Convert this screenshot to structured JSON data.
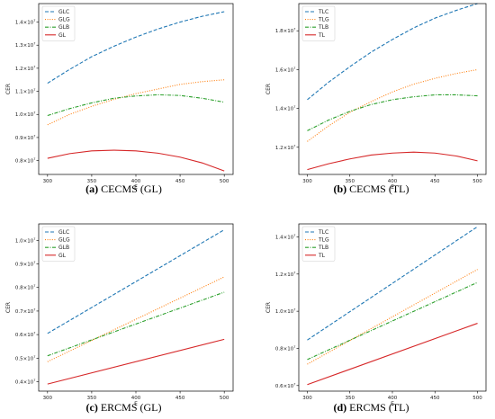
{
  "colors": {
    "C": "#1f77b4",
    "G": "#ff7f0e",
    "B": "#2ca02c",
    "L": "#d62728"
  },
  "captions": [
    {
      "letter": "(a)",
      "text": "CECMS (GL)"
    },
    {
      "letter": "(b)",
      "text": "CECMS (TL)"
    },
    {
      "letter": "(c)",
      "text": "ERCMS (GL)"
    },
    {
      "letter": "(d)",
      "text": "ERCMS (TL)"
    }
  ],
  "chart_data": [
    {
      "type": "line",
      "xlabel": "E",
      "ylabel": "CER",
      "x": [
        300,
        325,
        350,
        375,
        400,
        425,
        450,
        475,
        500
      ],
      "xticks": [
        300,
        350,
        400,
        450,
        500
      ],
      "xlim": [
        290,
        510
      ],
      "ylim": [
        7400000,
        14800000
      ],
      "yticks": [
        {
          "value": 8000000,
          "mant": "0.8×10",
          "exp": "7"
        },
        {
          "value": 9000000,
          "mant": "0.9×10",
          "exp": "7"
        },
        {
          "value": 10000000,
          "mant": "1.0×10",
          "exp": "7"
        },
        {
          "value": 11000000,
          "mant": "1.1×10",
          "exp": "7"
        },
        {
          "value": 12000000,
          "mant": "1.2×10",
          "exp": "7"
        },
        {
          "value": 13000000,
          "mant": "1.3×10",
          "exp": "7"
        },
        {
          "value": 14000000,
          "mant": "1.4×10",
          "exp": "7"
        }
      ],
      "legend": "top-left",
      "series": [
        {
          "name": "GLC",
          "style": "dashed",
          "color": "C",
          "values": [
            11350000,
            11950000,
            12500000,
            12950000,
            13350000,
            13700000,
            14000000,
            14250000,
            14450000
          ]
        },
        {
          "name": "GLG",
          "style": "dotted",
          "color": "G",
          "values": [
            9550000,
            10000000,
            10350000,
            10650000,
            10900000,
            11100000,
            11300000,
            11420000,
            11500000
          ]
        },
        {
          "name": "GLB",
          "style": "dashdot",
          "color": "B",
          "values": [
            9950000,
            10250000,
            10500000,
            10700000,
            10800000,
            10850000,
            10820000,
            10700000,
            10530000
          ]
        },
        {
          "name": "GL",
          "style": "solid",
          "color": "L",
          "values": [
            8100000,
            8300000,
            8420000,
            8450000,
            8420000,
            8320000,
            8150000,
            7900000,
            7550000
          ]
        }
      ]
    },
    {
      "type": "line",
      "xlabel": "E",
      "ylabel": "CER",
      "x": [
        300,
        325,
        350,
        375,
        400,
        425,
        450,
        475,
        500
      ],
      "xticks": [
        300,
        350,
        400,
        450,
        500
      ],
      "xlim": [
        290,
        510
      ],
      "ylim": [
        10600000,
        19400000
      ],
      "yticks": [
        {
          "value": 12000000,
          "mant": "1.2×10",
          "exp": "7"
        },
        {
          "value": 14000000,
          "mant": "1.4×10",
          "exp": "7"
        },
        {
          "value": 16000000,
          "mant": "1.6×10",
          "exp": "7"
        },
        {
          "value": 18000000,
          "mant": "1.8×10",
          "exp": "7"
        }
      ],
      "legend": "top-left",
      "series": [
        {
          "name": "TLC",
          "style": "dashed",
          "color": "C",
          "values": [
            14450000,
            15350000,
            16150000,
            16900000,
            17550000,
            18150000,
            18650000,
            19050000,
            19400000
          ]
        },
        {
          "name": "TLG",
          "style": "dotted",
          "color": "G",
          "values": [
            12300000,
            13100000,
            13800000,
            14350000,
            14850000,
            15250000,
            15550000,
            15800000,
            16000000
          ]
        },
        {
          "name": "TLB",
          "style": "dashdot",
          "color": "B",
          "values": [
            12850000,
            13400000,
            13850000,
            14200000,
            14450000,
            14600000,
            14700000,
            14700000,
            14650000
          ]
        },
        {
          "name": "TL",
          "style": "solid",
          "color": "L",
          "values": [
            10850000,
            11150000,
            11400000,
            11600000,
            11700000,
            11750000,
            11700000,
            11550000,
            11300000
          ]
        }
      ]
    },
    {
      "type": "line",
      "xlabel": "E",
      "ylabel": "CER",
      "x": [
        300,
        500
      ],
      "xticks": [
        300,
        350,
        400,
        450,
        500
      ],
      "xlim": [
        290,
        510
      ],
      "ylim": [
        3600000,
        10700000
      ],
      "yticks": [
        {
          "value": 4000000,
          "mant": "0.4×10",
          "exp": "7"
        },
        {
          "value": 5000000,
          "mant": "0.5×10",
          "exp": "7"
        },
        {
          "value": 6000000,
          "mant": "0.6×10",
          "exp": "7"
        },
        {
          "value": 7000000,
          "mant": "0.7×10",
          "exp": "7"
        },
        {
          "value": 8000000,
          "mant": "0.8×10",
          "exp": "7"
        },
        {
          "value": 9000000,
          "mant": "0.9×10",
          "exp": "7"
        },
        {
          "value": 10000000,
          "mant": "1.0×10",
          "exp": "7"
        }
      ],
      "legend": "top-left",
      "series": [
        {
          "name": "GLC",
          "style": "dashed",
          "color": "C",
          "values": [
            6050000,
            10450000
          ]
        },
        {
          "name": "GLG",
          "style": "dotted",
          "color": "G",
          "values": [
            4850000,
            8450000
          ]
        },
        {
          "name": "GLB",
          "style": "dashdot",
          "color": "B",
          "values": [
            5100000,
            7800000
          ]
        },
        {
          "name": "GL",
          "style": "solid",
          "color": "L",
          "values": [
            3900000,
            5800000
          ]
        }
      ]
    },
    {
      "type": "line",
      "xlabel": "E",
      "ylabel": "CER",
      "x": [
        300,
        500
      ],
      "xticks": [
        300,
        350,
        400,
        450,
        500
      ],
      "xlim": [
        290,
        510
      ],
      "ylim": [
        5700000,
        14700000
      ],
      "yticks": [
        {
          "value": 6000000,
          "mant": "0.6×10",
          "exp": "7"
        },
        {
          "value": 8000000,
          "mant": "0.8×10",
          "exp": "7"
        },
        {
          "value": 10000000,
          "mant": "1.0×10",
          "exp": "7"
        },
        {
          "value": 12000000,
          "mant": "1.2×10",
          "exp": "7"
        },
        {
          "value": 14000000,
          "mant": "1.4×10",
          "exp": "7"
        }
      ],
      "legend": "top-left",
      "series": [
        {
          "name": "TLC",
          "style": "dashed",
          "color": "C",
          "values": [
            8450000,
            14550000
          ]
        },
        {
          "name": "TLG",
          "style": "dotted",
          "color": "G",
          "values": [
            7150000,
            12250000
          ]
        },
        {
          "name": "TLB",
          "style": "dashdot",
          "color": "B",
          "values": [
            7400000,
            11550000
          ]
        },
        {
          "name": "TL",
          "style": "solid",
          "color": "L",
          "values": [
            6050000,
            9350000
          ]
        }
      ]
    }
  ]
}
